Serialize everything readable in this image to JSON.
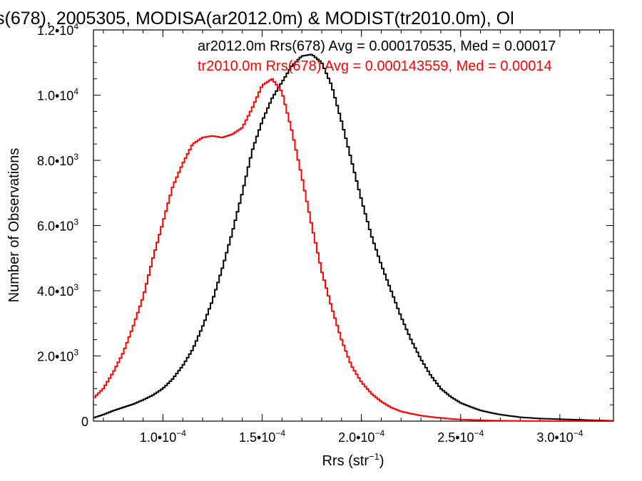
{
  "chart_data": {
    "type": "line",
    "step": true,
    "title": "s(678), 2005305, MODISA(ar2012.0m) & MODIST(tr2010.0m), Ol",
    "xlabel": "Rrs (str",
    "xlabel_sup": "−1",
    "xlabel_close": ")",
    "ylabel": "Number of Observations",
    "xlim": [
      6.5e-05,
      0.000327
    ],
    "ylim": [
      0,
      12000
    ],
    "xticks": [
      {
        "value": 0.0001,
        "label": "1.0•10",
        "sup": "−4"
      },
      {
        "value": 0.00015,
        "label": "1.5•10",
        "sup": "−4"
      },
      {
        "value": 0.0002,
        "label": "2.0•10",
        "sup": "−4"
      },
      {
        "value": 0.00025,
        "label": "2.5•10",
        "sup": "−4"
      },
      {
        "value": 0.0003,
        "label": "3.0•10",
        "sup": "−4"
      }
    ],
    "yticks": [
      {
        "value": 0,
        "label": "0",
        "sup": ""
      },
      {
        "value": 2000,
        "label": "2.0•10",
        "sup": "3"
      },
      {
        "value": 4000,
        "label": "4.0•10",
        "sup": "3"
      },
      {
        "value": 6000,
        "label": "6.0•10",
        "sup": "3"
      },
      {
        "value": 8000,
        "label": "8.0•10",
        "sup": "3"
      },
      {
        "value": 10000,
        "label": "1.0•10",
        "sup": "4"
      },
      {
        "value": 12000,
        "label": "1.2•10",
        "sup": "4"
      }
    ],
    "legend": {
      "placement": "top-right",
      "entries": [
        "ar2012.0m Rrs(678) Avg = 0.000170535, Med = 0.00017",
        "tr2010.0m Rrs(678) Avg = 0.000143559, Med = 0.00014"
      ]
    },
    "series": [
      {
        "color": "#000000",
        "x": [
          6.5e-05,
          7e-05,
          7.5e-05,
          8e-05,
          8.5e-05,
          9e-05,
          9.5e-05,
          0.0001,
          0.000105,
          0.00011,
          0.000115,
          0.00012,
          0.000125,
          0.00013,
          0.000135,
          0.00014,
          0.000145,
          0.00015,
          0.000155,
          0.00016,
          0.000165,
          0.00017,
          0.000175,
          0.00018,
          0.000185,
          0.00019,
          0.000195,
          0.0002,
          0.000205,
          0.00021,
          0.000215,
          0.00022,
          0.000225,
          0.00023,
          0.000235,
          0.00024,
          0.000245,
          0.00025,
          0.000255,
          0.00026,
          0.000265,
          0.00027,
          0.000275,
          0.00028,
          0.000285,
          0.00029,
          0.000295,
          0.0003,
          0.000305,
          0.00031,
          0.000315,
          0.00032,
          0.000327
        ],
        "y": [
          100,
          200,
          320,
          420,
          520,
          650,
          800,
          1000,
          1300,
          1700,
          2200,
          2900,
          3700,
          4700,
          5800,
          7000,
          8300,
          9200,
          9900,
          10400,
          10900,
          11200,
          11250,
          11000,
          10300,
          9200,
          8000,
          6800,
          5700,
          4800,
          4000,
          3200,
          2500,
          1900,
          1400,
          1000,
          750,
          560,
          440,
          330,
          260,
          200,
          160,
          120,
          100,
          80,
          70,
          60,
          50,
          40,
          30,
          20,
          10
        ]
      },
      {
        "color": "#ff0000",
        "x": [
          6.5e-05,
          7e-05,
          7.5e-05,
          8e-05,
          8.5e-05,
          9e-05,
          9.5e-05,
          0.0001,
          0.000105,
          0.00011,
          0.000115,
          0.00012,
          0.000125,
          0.00013,
          0.000135,
          0.00014,
          0.000145,
          0.00015,
          0.000155,
          0.00016,
          0.000165,
          0.00017,
          0.000175,
          0.00018,
          0.000185,
          0.00019,
          0.000195,
          0.0002,
          0.000205,
          0.00021,
          0.000215,
          0.00022,
          0.000225,
          0.00023,
          0.000235,
          0.00024,
          0.000245,
          0.00025,
          0.000255,
          0.00026,
          0.000265,
          0.00027,
          0.000275,
          0.00028,
          0.000285,
          0.00029,
          0.000295,
          0.0003,
          0.000305,
          0.00031,
          0.000315,
          0.00032,
          0.000327
        ],
        "y": [
          700,
          1000,
          1500,
          2100,
          2900,
          3800,
          5000,
          6100,
          7200,
          7900,
          8500,
          8700,
          8750,
          8700,
          8800,
          9000,
          9600,
          10300,
          10500,
          10100,
          8900,
          7500,
          6000,
          4600,
          3500,
          2500,
          1700,
          1200,
          850,
          600,
          420,
          300,
          230,
          170,
          130,
          100,
          70,
          50,
          40,
          30,
          20,
          15,
          10,
          8,
          6,
          5,
          4,
          3,
          2,
          2,
          1,
          1,
          1
        ]
      }
    ]
  }
}
